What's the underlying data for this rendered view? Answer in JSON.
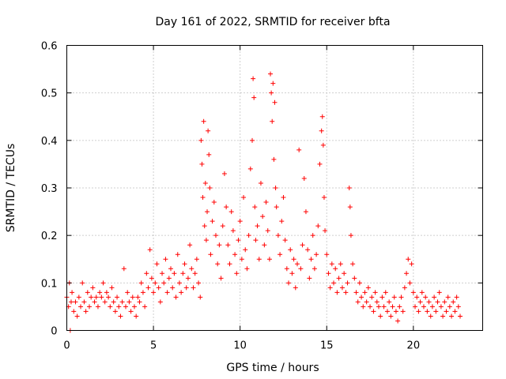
{
  "chart_data": {
    "type": "scatter",
    "title": "Day 161 of 2022, SRMTID for receiver bfta",
    "xlabel": "GPS time / hours",
    "ylabel": "SRMTID / TECUs",
    "xlim": [
      0,
      24
    ],
    "ylim": [
      0,
      0.6
    ],
    "xticks": [
      0,
      5,
      10,
      15,
      20
    ],
    "yticks": [
      0,
      0.1,
      0.2,
      0.3,
      0.4,
      0.5,
      0.6
    ],
    "xtick_labels": [
      "0",
      "5",
      "10",
      "15",
      "20"
    ],
    "ytick_labels": [
      "0",
      "0.1",
      "0.2",
      "0.3",
      "0.4",
      "0.5",
      "0.6"
    ],
    "grid": true,
    "marker": "+",
    "series": [
      {
        "name": "SRMTID",
        "color": "#ff0000",
        "points": [
          [
            0.0,
            0.07
          ],
          [
            0.1,
            0.05
          ],
          [
            0.15,
            0.1
          ],
          [
            0.2,
            0.0
          ],
          [
            0.25,
            0.06
          ],
          [
            0.3,
            0.08
          ],
          [
            0.4,
            0.04
          ],
          [
            0.5,
            0.06
          ],
          [
            0.6,
            0.03
          ],
          [
            0.7,
            0.07
          ],
          [
            0.8,
            0.05
          ],
          [
            0.9,
            0.1
          ],
          [
            1.0,
            0.06
          ],
          [
            1.1,
            0.04
          ],
          [
            1.2,
            0.08
          ],
          [
            1.3,
            0.05
          ],
          [
            1.4,
            0.07
          ],
          [
            1.5,
            0.09
          ],
          [
            1.6,
            0.06
          ],
          [
            1.7,
            0.07
          ],
          [
            1.8,
            0.05
          ],
          [
            1.9,
            0.08
          ],
          [
            2.0,
            0.07
          ],
          [
            2.1,
            0.1
          ],
          [
            2.2,
            0.06
          ],
          [
            2.3,
            0.08
          ],
          [
            2.4,
            0.07
          ],
          [
            2.5,
            0.05
          ],
          [
            2.6,
            0.09
          ],
          [
            2.7,
            0.06
          ],
          [
            2.8,
            0.04
          ],
          [
            2.9,
            0.07
          ],
          [
            3.0,
            0.05
          ],
          [
            3.1,
            0.03
          ],
          [
            3.2,
            0.06
          ],
          [
            3.3,
            0.13
          ],
          [
            3.4,
            0.05
          ],
          [
            3.5,
            0.08
          ],
          [
            3.6,
            0.06
          ],
          [
            3.7,
            0.04
          ],
          [
            3.8,
            0.07
          ],
          [
            3.9,
            0.05
          ],
          [
            4.0,
            0.03
          ],
          [
            4.1,
            0.07
          ],
          [
            4.2,
            0.06
          ],
          [
            4.3,
            0.1
          ],
          [
            4.4,
            0.08
          ],
          [
            4.5,
            0.05
          ],
          [
            4.6,
            0.12
          ],
          [
            4.7,
            0.09
          ],
          [
            4.8,
            0.17
          ],
          [
            4.9,
            0.11
          ],
          [
            5.0,
            0.08
          ],
          [
            5.1,
            0.1
          ],
          [
            5.2,
            0.14
          ],
          [
            5.3,
            0.09
          ],
          [
            5.4,
            0.06
          ],
          [
            5.5,
            0.12
          ],
          [
            5.6,
            0.1
          ],
          [
            5.7,
            0.15
          ],
          [
            5.8,
            0.08
          ],
          [
            5.9,
            0.11
          ],
          [
            6.0,
            0.13
          ],
          [
            6.1,
            0.09
          ],
          [
            6.2,
            0.12
          ],
          [
            6.3,
            0.07
          ],
          [
            6.4,
            0.16
          ],
          [
            6.5,
            0.1
          ],
          [
            6.6,
            0.08
          ],
          [
            6.7,
            0.12
          ],
          [
            6.8,
            0.14
          ],
          [
            6.9,
            0.09
          ],
          [
            7.0,
            0.11
          ],
          [
            7.1,
            0.18
          ],
          [
            7.2,
            0.13
          ],
          [
            7.3,
            0.09
          ],
          [
            7.4,
            0.12
          ],
          [
            7.5,
            0.15
          ],
          [
            7.6,
            0.1
          ],
          [
            7.7,
            0.07
          ],
          [
            7.75,
            0.4
          ],
          [
            7.8,
            0.35
          ],
          [
            7.85,
            0.28
          ],
          [
            7.9,
            0.44
          ],
          [
            7.95,
            0.22
          ],
          [
            8.0,
            0.31
          ],
          [
            8.05,
            0.19
          ],
          [
            8.1,
            0.25
          ],
          [
            8.15,
            0.42
          ],
          [
            8.2,
            0.37
          ],
          [
            8.25,
            0.3
          ],
          [
            8.3,
            0.16
          ],
          [
            8.4,
            0.23
          ],
          [
            8.5,
            0.27
          ],
          [
            8.6,
            0.2
          ],
          [
            8.7,
            0.14
          ],
          [
            8.8,
            0.18
          ],
          [
            8.9,
            0.11
          ],
          [
            9.0,
            0.22
          ],
          [
            9.1,
            0.33
          ],
          [
            9.2,
            0.26
          ],
          [
            9.3,
            0.18
          ],
          [
            9.4,
            0.14
          ],
          [
            9.5,
            0.25
          ],
          [
            9.6,
            0.21
          ],
          [
            9.7,
            0.16
          ],
          [
            9.8,
            0.12
          ],
          [
            9.9,
            0.19
          ],
          [
            10.0,
            0.23
          ],
          [
            10.1,
            0.15
          ],
          [
            10.2,
            0.28
          ],
          [
            10.3,
            0.17
          ],
          [
            10.4,
            0.13
          ],
          [
            10.5,
            0.2
          ],
          [
            10.6,
            0.34
          ],
          [
            10.7,
            0.4
          ],
          [
            10.75,
            0.53
          ],
          [
            10.8,
            0.49
          ],
          [
            10.85,
            0.26
          ],
          [
            10.9,
            0.19
          ],
          [
            11.0,
            0.22
          ],
          [
            11.1,
            0.15
          ],
          [
            11.2,
            0.31
          ],
          [
            11.3,
            0.24
          ],
          [
            11.4,
            0.18
          ],
          [
            11.5,
            0.27
          ],
          [
            11.6,
            0.21
          ],
          [
            11.7,
            0.15
          ],
          [
            11.75,
            0.54
          ],
          [
            11.8,
            0.5
          ],
          [
            11.85,
            0.44
          ],
          [
            11.9,
            0.52
          ],
          [
            11.95,
            0.36
          ],
          [
            12.0,
            0.48
          ],
          [
            12.05,
            0.3
          ],
          [
            12.1,
            0.26
          ],
          [
            12.2,
            0.2
          ],
          [
            12.3,
            0.16
          ],
          [
            12.4,
            0.23
          ],
          [
            12.5,
            0.28
          ],
          [
            12.6,
            0.19
          ],
          [
            12.7,
            0.13
          ],
          [
            12.8,
            0.1
          ],
          [
            12.9,
            0.17
          ],
          [
            13.0,
            0.12
          ],
          [
            13.1,
            0.15
          ],
          [
            13.2,
            0.09
          ],
          [
            13.3,
            0.14
          ],
          [
            13.4,
            0.38
          ],
          [
            13.5,
            0.13
          ],
          [
            13.6,
            0.18
          ],
          [
            13.7,
            0.32
          ],
          [
            13.8,
            0.25
          ],
          [
            13.9,
            0.17
          ],
          [
            14.0,
            0.11
          ],
          [
            14.1,
            0.15
          ],
          [
            14.2,
            0.2
          ],
          [
            14.3,
            0.13
          ],
          [
            14.4,
            0.16
          ],
          [
            14.5,
            0.22
          ],
          [
            14.6,
            0.35
          ],
          [
            14.7,
            0.42
          ],
          [
            14.75,
            0.45
          ],
          [
            14.8,
            0.39
          ],
          [
            14.85,
            0.28
          ],
          [
            14.9,
            0.21
          ],
          [
            15.0,
            0.16
          ],
          [
            15.1,
            0.12
          ],
          [
            15.2,
            0.09
          ],
          [
            15.3,
            0.14
          ],
          [
            15.4,
            0.1
          ],
          [
            15.5,
            0.13
          ],
          [
            15.6,
            0.08
          ],
          [
            15.7,
            0.11
          ],
          [
            15.8,
            0.14
          ],
          [
            15.9,
            0.09
          ],
          [
            16.0,
            0.12
          ],
          [
            16.1,
            0.08
          ],
          [
            16.2,
            0.1
          ],
          [
            16.3,
            0.3
          ],
          [
            16.35,
            0.26
          ],
          [
            16.4,
            0.2
          ],
          [
            16.5,
            0.14
          ],
          [
            16.6,
            0.11
          ],
          [
            16.7,
            0.08
          ],
          [
            16.8,
            0.06
          ],
          [
            16.9,
            0.1
          ],
          [
            17.0,
            0.07
          ],
          [
            17.1,
            0.05
          ],
          [
            17.2,
            0.08
          ],
          [
            17.3,
            0.06
          ],
          [
            17.4,
            0.09
          ],
          [
            17.5,
            0.05
          ],
          [
            17.6,
            0.07
          ],
          [
            17.7,
            0.04
          ],
          [
            17.8,
            0.08
          ],
          [
            17.9,
            0.06
          ],
          [
            18.0,
            0.05
          ],
          [
            18.1,
            0.03
          ],
          [
            18.2,
            0.07
          ],
          [
            18.3,
            0.05
          ],
          [
            18.4,
            0.08
          ],
          [
            18.5,
            0.04
          ],
          [
            18.6,
            0.06
          ],
          [
            18.7,
            0.03
          ],
          [
            18.8,
            0.05
          ],
          [
            18.9,
            0.07
          ],
          [
            19.0,
            0.04
          ],
          [
            19.1,
            0.02
          ],
          [
            19.2,
            0.05
          ],
          [
            19.3,
            0.07
          ],
          [
            19.4,
            0.04
          ],
          [
            19.5,
            0.09
          ],
          [
            19.6,
            0.12
          ],
          [
            19.7,
            0.15
          ],
          [
            19.8,
            0.1
          ],
          [
            19.9,
            0.14
          ],
          [
            20.0,
            0.08
          ],
          [
            20.1,
            0.05
          ],
          [
            20.2,
            0.07
          ],
          [
            20.3,
            0.04
          ],
          [
            20.4,
            0.06
          ],
          [
            20.5,
            0.08
          ],
          [
            20.6,
            0.05
          ],
          [
            20.7,
            0.07
          ],
          [
            20.8,
            0.04
          ],
          [
            20.9,
            0.06
          ],
          [
            21.0,
            0.03
          ],
          [
            21.1,
            0.05
          ],
          [
            21.2,
            0.07
          ],
          [
            21.3,
            0.04
          ],
          [
            21.4,
            0.06
          ],
          [
            21.5,
            0.08
          ],
          [
            21.6,
            0.05
          ],
          [
            21.7,
            0.03
          ],
          [
            21.8,
            0.06
          ],
          [
            21.9,
            0.04
          ],
          [
            22.0,
            0.07
          ],
          [
            22.1,
            0.05
          ],
          [
            22.2,
            0.03
          ],
          [
            22.3,
            0.06
          ],
          [
            22.4,
            0.04
          ],
          [
            22.5,
            0.07
          ],
          [
            22.6,
            0.05
          ],
          [
            22.7,
            0.03
          ]
        ]
      }
    ]
  }
}
